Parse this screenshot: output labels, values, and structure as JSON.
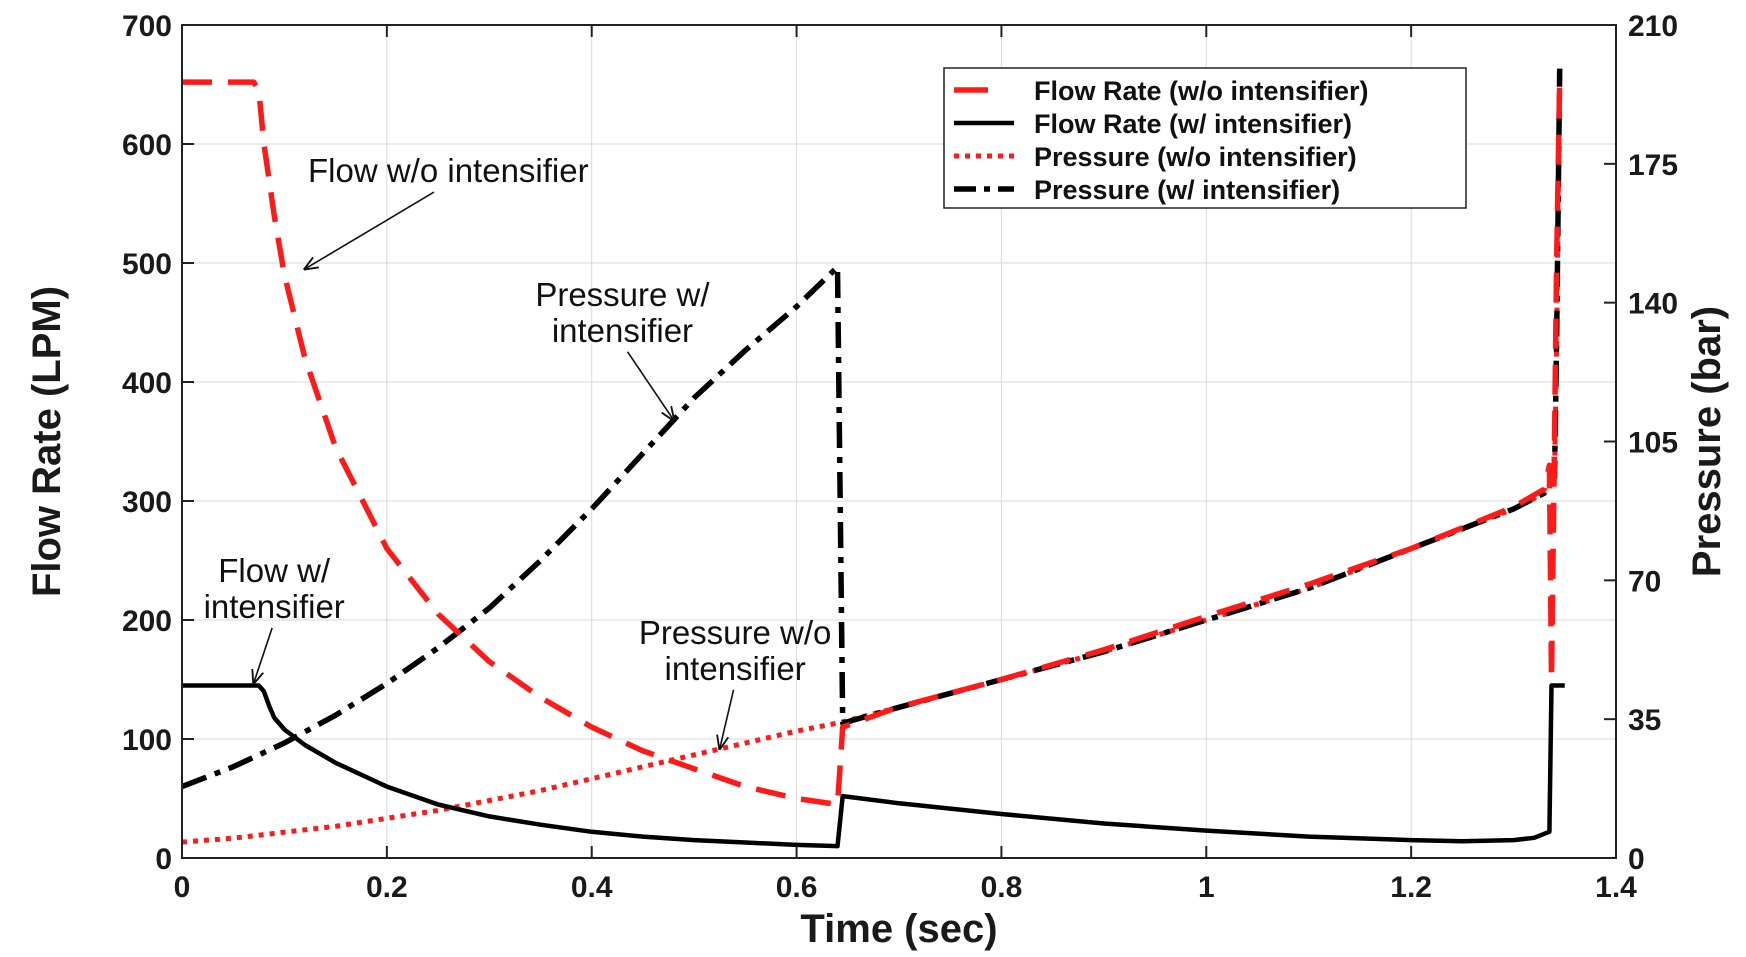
{
  "chart_data": {
    "type": "line",
    "xlabel": "Time (sec)",
    "ylabel": "Flow Rate (LPM)",
    "y2label": "Pressure (bar)",
    "xlim": [
      0,
      1.4
    ],
    "ylim": [
      0,
      700
    ],
    "y2lim": [
      0,
      210
    ],
    "x_ticks": [
      "0",
      "0.2",
      "0.4",
      "0.6",
      "0.8",
      "1",
      "1.2",
      "1.4"
    ],
    "y_ticks": [
      "0",
      "100",
      "200",
      "300",
      "400",
      "500",
      "600",
      "700"
    ],
    "y2_ticks": [
      "0",
      "35",
      "70",
      "105",
      "140",
      "175",
      "210"
    ],
    "grid": true,
    "legend_position": "top-right",
    "series": [
      {
        "name": "Flow Rate (w/o intensifier)",
        "axis": "left",
        "color": "#ff1a1a",
        "style": "dashed",
        "points": [
          [
            0,
            652
          ],
          [
            0.07,
            652
          ],
          [
            0.075,
            645
          ],
          [
            0.08,
            600
          ],
          [
            0.09,
            540
          ],
          [
            0.1,
            490
          ],
          [
            0.12,
            420
          ],
          [
            0.15,
            345
          ],
          [
            0.2,
            260
          ],
          [
            0.25,
            205
          ],
          [
            0.3,
            165
          ],
          [
            0.35,
            135
          ],
          [
            0.4,
            110
          ],
          [
            0.45,
            90
          ],
          [
            0.5,
            75
          ],
          [
            0.55,
            60
          ],
          [
            0.6,
            50
          ],
          [
            0.64,
            45
          ],
          [
            0.645,
            110
          ],
          [
            0.7,
            127
          ],
          [
            0.8,
            150
          ],
          [
            0.9,
            175
          ],
          [
            1.0,
            203
          ],
          [
            1.1,
            230
          ],
          [
            1.2,
            260
          ],
          [
            1.3,
            295
          ],
          [
            1.33,
            310
          ],
          [
            1.335,
            330
          ],
          [
            1.337,
            150
          ],
          [
            1.34,
            350
          ],
          [
            1.342,
            500
          ],
          [
            1.345,
            655
          ]
        ]
      },
      {
        "name": "Flow Rate (w/ intensifier)",
        "axis": "left",
        "color": "#000000",
        "style": "solid",
        "points": [
          [
            0,
            145
          ],
          [
            0.075,
            145
          ],
          [
            0.08,
            140
          ],
          [
            0.085,
            128
          ],
          [
            0.09,
            118
          ],
          [
            0.1,
            108
          ],
          [
            0.12,
            95
          ],
          [
            0.15,
            80
          ],
          [
            0.2,
            60
          ],
          [
            0.25,
            45
          ],
          [
            0.3,
            35
          ],
          [
            0.35,
            28
          ],
          [
            0.4,
            22
          ],
          [
            0.45,
            18
          ],
          [
            0.5,
            15
          ],
          [
            0.55,
            13
          ],
          [
            0.6,
            11
          ],
          [
            0.64,
            10
          ],
          [
            0.645,
            52
          ],
          [
            0.7,
            46
          ],
          [
            0.8,
            37
          ],
          [
            0.9,
            29
          ],
          [
            1.0,
            23
          ],
          [
            1.1,
            18
          ],
          [
            1.2,
            15
          ],
          [
            1.25,
            14
          ],
          [
            1.3,
            15
          ],
          [
            1.32,
            17
          ],
          [
            1.335,
            22
          ],
          [
            1.337,
            145
          ],
          [
            1.35,
            145
          ]
        ]
      },
      {
        "name": "Pressure (w/o intensifier)",
        "axis": "right",
        "color": "#ff1a1a",
        "style": "dotted",
        "points": [
          [
            0,
            4
          ],
          [
            0.05,
            5
          ],
          [
            0.1,
            6.5
          ],
          [
            0.15,
            8
          ],
          [
            0.2,
            10
          ],
          [
            0.25,
            12
          ],
          [
            0.3,
            14.5
          ],
          [
            0.35,
            17
          ],
          [
            0.4,
            20
          ],
          [
            0.45,
            23
          ],
          [
            0.5,
            26
          ],
          [
            0.55,
            29
          ],
          [
            0.6,
            32
          ],
          [
            0.64,
            34
          ],
          [
            0.7,
            38
          ],
          [
            0.8,
            45
          ],
          [
            0.9,
            52
          ],
          [
            1.0,
            60
          ],
          [
            1.1,
            68
          ],
          [
            1.2,
            78
          ],
          [
            1.3,
            88
          ],
          [
            1.33,
            92
          ],
          [
            1.335,
            94
          ],
          [
            1.34,
            96
          ],
          [
            1.342,
            130
          ],
          [
            1.345,
            197
          ]
        ]
      },
      {
        "name": "Pressure (w/ intensifier)",
        "axis": "right",
        "color": "#000000",
        "style": "dashdot",
        "points": [
          [
            0,
            18
          ],
          [
            0.05,
            23
          ],
          [
            0.1,
            29
          ],
          [
            0.15,
            36
          ],
          [
            0.2,
            44
          ],
          [
            0.25,
            53
          ],
          [
            0.3,
            63
          ],
          [
            0.35,
            75
          ],
          [
            0.4,
            88
          ],
          [
            0.45,
            102
          ],
          [
            0.5,
            116
          ],
          [
            0.55,
            128
          ],
          [
            0.6,
            139
          ],
          [
            0.64,
            149
          ],
          [
            0.645,
            34
          ],
          [
            0.7,
            38
          ],
          [
            0.8,
            45
          ],
          [
            0.9,
            52
          ],
          [
            1.0,
            60
          ],
          [
            1.1,
            68
          ],
          [
            1.2,
            78
          ],
          [
            1.3,
            88
          ],
          [
            1.33,
            92
          ],
          [
            1.335,
            94
          ],
          [
            1.34,
            96
          ],
          [
            1.342,
            130
          ],
          [
            1.345,
            199
          ]
        ]
      }
    ],
    "annotations": [
      {
        "lines": [
          "Flow w/o intensifier"
        ],
        "target": [
          0.12,
          495
        ],
        "text_at": [
          0.26,
          568
        ]
      },
      {
        "lines": [
          "Pressure w/",
          "intensifier"
        ],
        "target": [
          0.48,
          368
        ],
        "text_at": [
          0.43,
          464
        ]
      },
      {
        "lines": [
          "Flow w/",
          "intensifier"
        ],
        "target": [
          0.07,
          147
        ],
        "text_at": [
          0.09,
          232
        ]
      },
      {
        "lines": [
          "Pressure w/o",
          "intensifier"
        ],
        "target": [
          0.525,
          92
        ],
        "text_at": [
          0.54,
          180
        ]
      }
    ]
  }
}
